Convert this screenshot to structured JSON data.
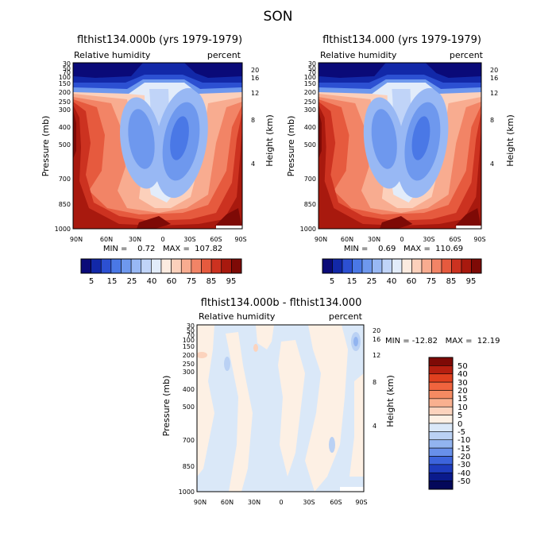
{
  "figure_title": "SON",
  "chart_data": [
    {
      "type": "heatmap",
      "id": "panel-1",
      "title": "flthist134.000b (yrs 1979-1979)",
      "subtitle_left": "Relative humidity",
      "subtitle_right": "percent",
      "xlabel": "",
      "ylabel": "Pressure (mb)",
      "ylabel_right": "Height (km)",
      "x_ticks": [
        "90N",
        "60N",
        "30N",
        "0",
        "30S",
        "60S",
        "90S"
      ],
      "y_ticks": [
        "30",
        "50",
        "70",
        "100",
        "150",
        "200",
        "250",
        "300",
        "400",
        "500",
        "700",
        "850",
        "1000"
      ],
      "y_ticks_right": [
        "20",
        "16",
        "12",
        "8",
        "4"
      ],
      "xlim": [
        90,
        -90
      ],
      "ylim": [
        1000,
        30
      ],
      "stats_text": "MIN =    0.72   MAX =  107.82",
      "min": 0.72,
      "max": 107.82,
      "colorbar_labels": [
        "5",
        "15",
        "25",
        "40",
        "60",
        "75",
        "85",
        "95"
      ]
    },
    {
      "type": "heatmap",
      "id": "panel-2",
      "title": "flthist134.000 (yrs 1979-1979)",
      "subtitle_left": "Relative humidity",
      "subtitle_right": "percent",
      "xlabel": "",
      "ylabel": "Pressure (mb)",
      "ylabel_right": "Height (km)",
      "x_ticks": [
        "90N",
        "60N",
        "30N",
        "0",
        "30S",
        "60S",
        "90S"
      ],
      "y_ticks": [
        "30",
        "50",
        "70",
        "100",
        "150",
        "200",
        "250",
        "300",
        "400",
        "500",
        "700",
        "850",
        "1000"
      ],
      "y_ticks_right": [
        "20",
        "16",
        "12",
        "8",
        "4"
      ],
      "xlim": [
        90,
        -90
      ],
      "ylim": [
        1000,
        30
      ],
      "stats_text": "MIN =    0.69   MAX =  110.69",
      "min": 0.69,
      "max": 110.69,
      "colorbar_labels": [
        "5",
        "15",
        "25",
        "40",
        "60",
        "75",
        "85",
        "95"
      ]
    },
    {
      "type": "heatmap",
      "id": "panel-diff",
      "title": "flthist134.000b - flthist134.000",
      "subtitle_left": "Relative humidity",
      "subtitle_right": "percent",
      "xlabel": "",
      "ylabel": "Pressure (mb)",
      "ylabel_right": "Height (km)",
      "x_ticks": [
        "90N",
        "60N",
        "30N",
        "0",
        "30S",
        "60S",
        "90S"
      ],
      "y_ticks": [
        "30",
        "50",
        "70",
        "100",
        "150",
        "200",
        "250",
        "300",
        "400",
        "500",
        "700",
        "850",
        "1000"
      ],
      "y_ticks_right": [
        "20",
        "16",
        "12",
        "8",
        "4"
      ],
      "xlim": [
        90,
        -90
      ],
      "ylim": [
        1000,
        30
      ],
      "stats_text": "MIN = -12.82   MAX =  12.19",
      "min": -12.82,
      "max": 12.19,
      "colorbar_labels": [
        "50",
        "40",
        "30",
        "20",
        "15",
        "10",
        "5",
        "0",
        "-5",
        "-10",
        "-15",
        "-20",
        "-30",
        "-40",
        "-50"
      ]
    }
  ],
  "palette_fields": [
    "#0a0a78",
    "#1228a8",
    "#2c50d2",
    "#4a78e6",
    "#6e98ee",
    "#98b8f4",
    "#c0d4f8",
    "#e2ecfa",
    "#fcebe0",
    "#fcd0bb",
    "#f8ac90",
    "#f28466",
    "#e65a3e",
    "#cc3220",
    "#a8190e",
    "#7e0a06"
  ],
  "palette_diff": [
    "#7e0a06",
    "#b61f10",
    "#e0401f",
    "#f0643e",
    "#f58a62",
    "#f9b08f",
    "#fcd3bd",
    "#fdf0e4",
    "#dae8f8",
    "#bad1f4",
    "#92b4f0",
    "#6890ea",
    "#3c64dc",
    "#1e3cbe",
    "#0a1a8c",
    "#04085a"
  ]
}
